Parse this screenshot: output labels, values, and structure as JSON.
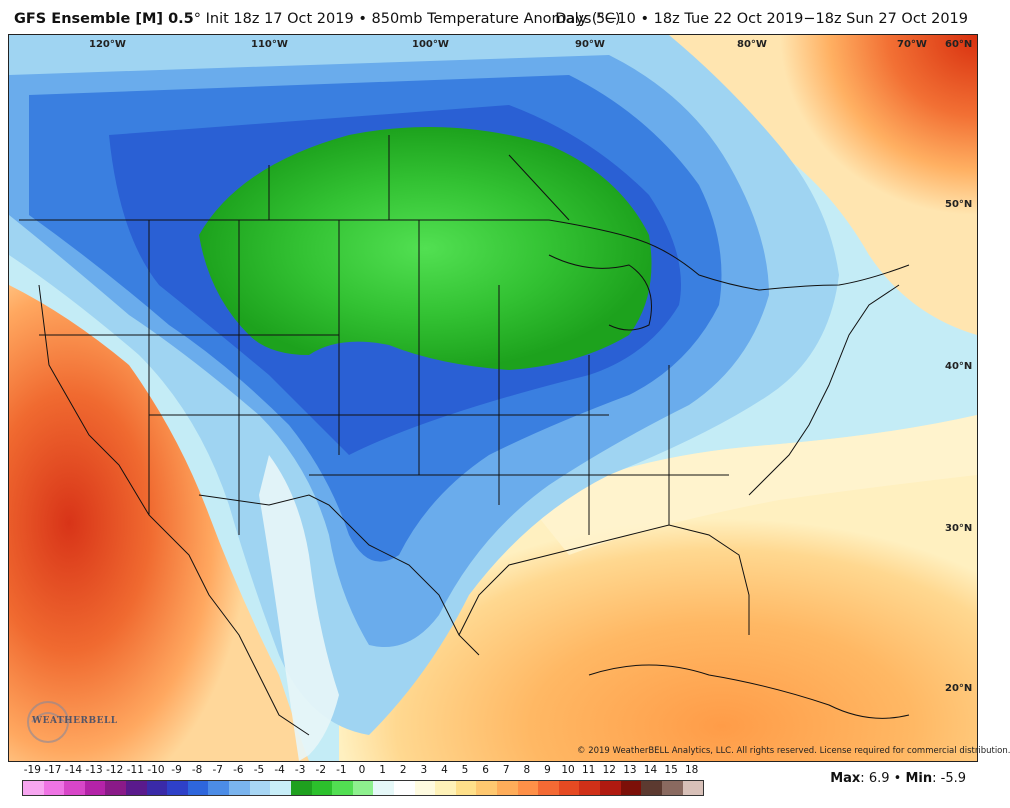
{
  "header": {
    "model": "GFS Ensemble [M] 0.5",
    "degree_symbol": "°",
    "run_info": "Init 18z 17 Oct 2019",
    "bullet": "•",
    "variable": "850mb Temperature Anomaly (°C)",
    "valid_range": "Days 5−10 • 18z Tue 22 Oct 2019−18z Sun 27 Oct 2019"
  },
  "map": {
    "longitude_labels": [
      "120°W",
      "110°W",
      "100°W",
      "90°W",
      "80°W",
      "70°W"
    ],
    "latitude_labels": [
      "60°N",
      "50°N",
      "40°N",
      "30°N",
      "20°N"
    ],
    "region": "North America / CONUS",
    "anomaly_pattern": {
      "cold_center": "Northern Plains / Upper Midwest",
      "warm_areas": [
        "California and Pacific coast",
        "Southeast / Gulf of Mexico",
        "Northeast Canada"
      ]
    }
  },
  "branding": {
    "logo_text": "WEATHERBELL",
    "copyright": "© 2019 WeatherBELL Analytics, LLC. All rights reserved. License required for commercial distribution."
  },
  "colorbar": {
    "labels": [
      "-19",
      "-17",
      "-14",
      "-13",
      "-12",
      "-11",
      "-10",
      "-9",
      "-8",
      "-7",
      "-6",
      "-5",
      "-4",
      "-3",
      "-2",
      "-1",
      "0",
      "1",
      "2",
      "3",
      "4",
      "5",
      "6",
      "7",
      "8",
      "9",
      "10",
      "11",
      "12",
      "13",
      "14",
      "15",
      "18"
    ],
    "colors": [
      "#f7a6f0",
      "#ef74e4",
      "#d846c8",
      "#b423a8",
      "#8a1a88",
      "#5a1a8c",
      "#3a2aa8",
      "#2e40c8",
      "#2e66dc",
      "#4c8ce6",
      "#7ab4ee",
      "#a8d6f4",
      "#c8eef8",
      "#1fa01f",
      "#2cc02c",
      "#52de52",
      "#8ef08e",
      "#e6f8f8",
      "#ffffff",
      "#fffbe0",
      "#fff2b8",
      "#ffe08a",
      "#ffc870",
      "#ffad5a",
      "#ff9048",
      "#f46a34",
      "#e64a22",
      "#d03018",
      "#b01a10",
      "#7c1008",
      "#5c3a30",
      "#8a6a60",
      "#d8c0b8"
    ],
    "note": "colors approximate the image colorbar order"
  },
  "stats": {
    "max_label": "Max",
    "max_value": "6.9",
    "min_label": "Min",
    "min_value": "-5.9",
    "separator": "•"
  }
}
